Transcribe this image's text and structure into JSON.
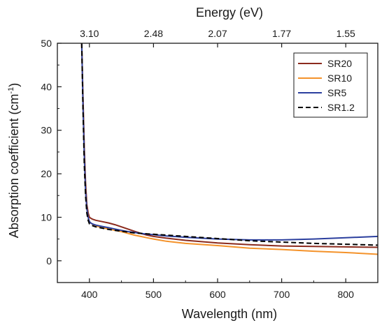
{
  "chart_data": {
    "type": "line",
    "xlabel": "Wavelength (nm)",
    "ylabel_main": "Absorption coefficient (cm",
    "ylabel_sup": "-1",
    "ylabel_close": ")",
    "top_axis_label": "Energy (eV)",
    "xlim": [
      350,
      850
    ],
    "ylim": [
      -5,
      50
    ],
    "x_ticks": [
      400,
      500,
      600,
      700,
      800
    ],
    "y_ticks": [
      0,
      10,
      20,
      30,
      40,
      50
    ],
    "top_ticks": [
      {
        "label": "3.10",
        "wavelength": 400
      },
      {
        "label": "2.48",
        "wavelength": 500
      },
      {
        "label": "2.07",
        "wavelength": 600
      },
      {
        "label": "1.77",
        "wavelength": 700
      },
      {
        "label": "1.55",
        "wavelength": 800
      }
    ],
    "grid": false,
    "legend_position": "top-right",
    "series": [
      {
        "name": "SR20",
        "color": "#8b2a1d",
        "dash": "solid",
        "x": [
          388,
          390,
          392,
          394,
          396,
          398,
          400,
          403,
          406,
          410,
          420,
          430,
          440,
          450,
          460,
          470,
          480,
          490,
          500,
          520,
          550,
          600,
          650,
          700,
          750,
          800,
          850
        ],
        "y": [
          50,
          38,
          26,
          18,
          13,
          11,
          10,
          9.7,
          9.5,
          9.3,
          9.0,
          8.7,
          8.3,
          7.8,
          7.3,
          6.8,
          6.3,
          5.9,
          5.6,
          5.2,
          4.7,
          4.1,
          3.7,
          3.4,
          3.3,
          3.2,
          3.1
        ]
      },
      {
        "name": "SR10",
        "color": "#f4922a",
        "dash": "solid",
        "x": [
          388,
          390,
          392,
          394,
          396,
          398,
          400,
          403,
          406,
          410,
          420,
          430,
          440,
          450,
          460,
          470,
          480,
          490,
          500,
          520,
          550,
          600,
          650,
          700,
          750,
          800,
          850
        ],
        "y": [
          50,
          36,
          24,
          16,
          12,
          10,
          9,
          8.6,
          8.3,
          8.0,
          7.6,
          7.3,
          7.0,
          6.7,
          6.3,
          5.9,
          5.6,
          5.3,
          5.0,
          4.5,
          4.0,
          3.5,
          2.9,
          2.6,
          2.2,
          1.9,
          1.5
        ]
      },
      {
        "name": "SR5",
        "color": "#2b3f9e",
        "dash": "solid",
        "x": [
          388,
          390,
          392,
          394,
          396,
          398,
          400,
          403,
          406,
          410,
          420,
          430,
          440,
          450,
          460,
          470,
          480,
          490,
          500,
          520,
          550,
          600,
          650,
          700,
          750,
          800,
          850
        ],
        "y": [
          50,
          36,
          24,
          16,
          12,
          10,
          9,
          8.6,
          8.4,
          8.2,
          7.9,
          7.6,
          7.3,
          7.0,
          6.7,
          6.5,
          6.3,
          6.1,
          6.0,
          5.7,
          5.4,
          5.0,
          4.8,
          4.8,
          5.0,
          5.3,
          5.6
        ]
      },
      {
        "name": "SR1.2",
        "color": "#000000",
        "dash": "dashed",
        "x": [
          388,
          390,
          392,
          394,
          396,
          398,
          400,
          403,
          406,
          410,
          420,
          430,
          440,
          450,
          460,
          470,
          480,
          490,
          500,
          520,
          550,
          600,
          650,
          700,
          750,
          800,
          850
        ],
        "y": [
          50,
          35,
          22,
          15,
          11,
          9.3,
          8.5,
          8.2,
          8.0,
          7.8,
          7.5,
          7.2,
          7.0,
          6.8,
          6.6,
          6.4,
          6.3,
          6.2,
          6.1,
          5.9,
          5.6,
          5.1,
          4.6,
          4.3,
          4.0,
          3.8,
          3.6
        ]
      }
    ]
  }
}
